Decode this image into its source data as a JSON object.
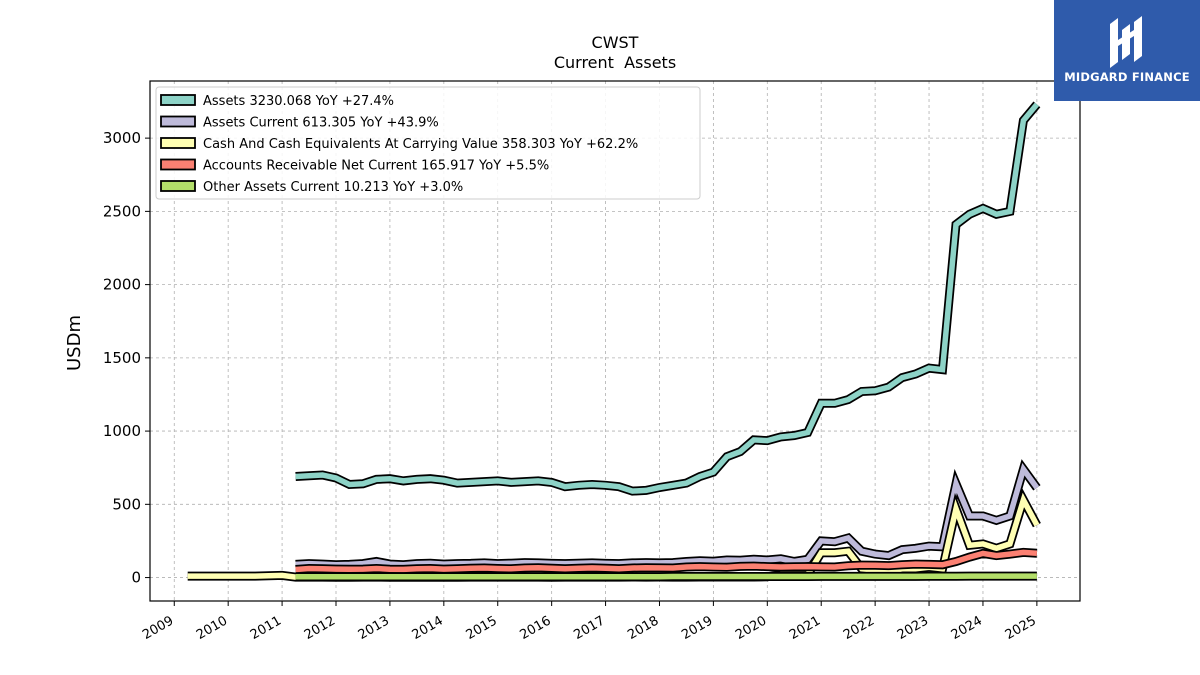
{
  "header": {
    "ticker": "CWST",
    "subtitle": "Current  Assets"
  },
  "logo": {
    "text": "MIDGARD FINANCE",
    "color": "#2f5bab"
  },
  "colors": {
    "assets": "#8dd3c7",
    "assets_current": "#bebada",
    "cash": "#ffffb3",
    "receivables": "#fb8072",
    "other": "#b3de69"
  },
  "chart_data": {
    "type": "line",
    "title": "CWST",
    "subtitle": "Current  Assets",
    "ylabel": "USDm",
    "xlabel": "",
    "ylim": [
      -160,
      3390
    ],
    "xlim": [
      2008.55,
      2025.8
    ],
    "y_ticks": [
      0,
      500,
      1000,
      1500,
      2000,
      2500,
      3000
    ],
    "x_ticks": [
      "2009",
      "2010",
      "2011",
      "2012",
      "2013",
      "2014",
      "2015",
      "2016",
      "2017",
      "2018",
      "2019",
      "2020",
      "2021",
      "2022",
      "2023",
      "2024",
      "2025"
    ],
    "grid": true,
    "legend_position": "top-left",
    "series": [
      {
        "name": "Assets  3230.068 YoY +27.4%",
        "color_key": "assets",
        "x": [
          2011.25,
          2011.5,
          2011.75,
          2012.0,
          2012.25,
          2012.5,
          2012.75,
          2013.0,
          2013.25,
          2013.5,
          2013.75,
          2014.0,
          2014.25,
          2014.5,
          2014.75,
          2015.0,
          2015.25,
          2015.5,
          2015.75,
          2016.0,
          2016.25,
          2016.5,
          2016.75,
          2017.0,
          2017.25,
          2017.5,
          2017.75,
          2018.0,
          2018.25,
          2018.5,
          2018.75,
          2019.0,
          2019.25,
          2019.5,
          2019.75,
          2020.0,
          2020.25,
          2020.5,
          2020.75,
          2021.0,
          2021.25,
          2021.5,
          2021.75,
          2022.0,
          2022.25,
          2022.5,
          2022.75,
          2023.0,
          2023.25,
          2023.5,
          2023.75,
          2024.0,
          2024.25,
          2024.5,
          2024.75,
          2025.0
        ],
        "y": [
          690,
          695,
          700,
          680,
          635,
          640,
          670,
          675,
          660,
          670,
          675,
          665,
          645,
          650,
          655,
          660,
          650,
          655,
          660,
          650,
          620,
          630,
          635,
          630,
          620,
          590,
          595,
          615,
          630,
          645,
          690,
          720,
          825,
          860,
          940,
          935,
          960,
          970,
          990,
          1190,
          1190,
          1215,
          1270,
          1275,
          1300,
          1365,
          1390,
          1430,
          1420,
          2410,
          2480,
          2520,
          2480,
          2500,
          3120,
          3230
        ]
      },
      {
        "name": "Assets Current  613.305 YoY +43.9%",
        "color_key": "assets_current",
        "x": [
          2011.25,
          2011.5,
          2011.75,
          2012.0,
          2012.25,
          2012.5,
          2012.75,
          2013.0,
          2013.25,
          2013.5,
          2013.75,
          2014.0,
          2014.25,
          2014.5,
          2014.75,
          2015.0,
          2015.25,
          2015.5,
          2015.75,
          2016.0,
          2016.25,
          2016.5,
          2016.75,
          2017.0,
          2017.25,
          2017.5,
          2017.75,
          2018.0,
          2018.25,
          2018.5,
          2018.75,
          2019.0,
          2019.25,
          2019.5,
          2019.75,
          2020.0,
          2020.25,
          2020.5,
          2020.75,
          2021.0,
          2021.25,
          2021.5,
          2021.75,
          2022.0,
          2022.25,
          2022.5,
          2022.75,
          2023.0,
          2023.25,
          2023.5,
          2023.75,
          2024.0,
          2024.25,
          2024.5,
          2024.75,
          2025.0
        ],
        "y": [
          90,
          95,
          92,
          88,
          90,
          95,
          110,
          92,
          88,
          95,
          98,
          92,
          95,
          97,
          100,
          95,
          98,
          102,
          100,
          97,
          95,
          98,
          100,
          97,
          95,
          100,
          102,
          100,
          102,
          110,
          115,
          112,
          120,
          118,
          125,
          120,
          128,
          110,
          125,
          250,
          245,
          270,
          180,
          160,
          150,
          190,
          200,
          215,
          210,
          640,
          420,
          420,
          390,
          420,
          740,
          613
        ]
      },
      {
        "name": "Cash And Cash Equivalents At Carrying Value  358.303 YoY +62.2%",
        "color_key": "cash",
        "x": [
          2009.25,
          2009.5,
          2009.75,
          2010.0,
          2010.25,
          2010.5,
          2010.75,
          2011.0,
          2011.25,
          2011.5,
          2011.75,
          2012.0,
          2012.25,
          2012.5,
          2012.75,
          2013.0,
          2013.25,
          2013.5,
          2013.75,
          2014.0,
          2014.25,
          2014.5,
          2014.75,
          2015.0,
          2015.25,
          2015.5,
          2015.75,
          2016.0,
          2016.25,
          2016.5,
          2016.75,
          2017.0,
          2017.25,
          2017.5,
          2017.75,
          2018.0,
          2018.25,
          2018.5,
          2018.75,
          2019.0,
          2019.25,
          2019.5,
          2019.75,
          2020.0,
          2020.25,
          2020.5,
          2020.75,
          2021.0,
          2021.25,
          2021.5,
          2021.75,
          2022.0,
          2022.25,
          2022.5,
          2022.75,
          2023.0,
          2023.25,
          2023.5,
          2023.75,
          2024.0,
          2024.25,
          2024.5,
          2024.75,
          2025.0
        ],
        "y": [
          10,
          10,
          10,
          10,
          10,
          10,
          12,
          15,
          3,
          3,
          3,
          2,
          2,
          3,
          3,
          2,
          2,
          2,
          3,
          2,
          2,
          3,
          3,
          3,
          3,
          3,
          3,
          2,
          3,
          3,
          3,
          3,
          3,
          4,
          3,
          4,
          3,
          3,
          4,
          4,
          4,
          4,
          4,
          5,
          20,
          20,
          20,
          170,
          170,
          180,
          60,
          50,
          40,
          60,
          60,
          70,
          60,
          470,
          220,
          230,
          200,
          230,
          530,
          358
        ]
      },
      {
        "name": "Accounts Receivable Net Current  165.917 YoY +5.5%",
        "color_key": "receivables",
        "x": [
          2011.25,
          2011.5,
          2011.75,
          2012.0,
          2012.25,
          2012.5,
          2012.75,
          2013.0,
          2013.25,
          2013.5,
          2013.75,
          2014.0,
          2014.25,
          2014.5,
          2014.75,
          2015.0,
          2015.25,
          2015.5,
          2015.75,
          2016.0,
          2016.25,
          2016.5,
          2016.75,
          2017.0,
          2017.25,
          2017.5,
          2017.75,
          2018.0,
          2018.25,
          2018.5,
          2018.75,
          2019.0,
          2019.25,
          2019.5,
          2019.75,
          2020.0,
          2020.25,
          2020.5,
          2020.75,
          2021.0,
          2021.25,
          2021.5,
          2021.75,
          2022.0,
          2022.25,
          2022.5,
          2022.75,
          2023.0,
          2023.25,
          2023.5,
          2023.75,
          2024.0,
          2024.25,
          2024.5,
          2024.75,
          2025.0
        ],
        "y": [
          55,
          62,
          60,
          58,
          57,
          58,
          62,
          57,
          56,
          60,
          62,
          58,
          60,
          63,
          65,
          62,
          60,
          65,
          67,
          63,
          60,
          64,
          66,
          63,
          60,
          65,
          67,
          66,
          65,
          72,
          75,
          72,
          70,
          76,
          78,
          75,
          72,
          74,
          75,
          73,
          72,
          80,
          85,
          84,
          82,
          88,
          92,
          90,
          87,
          110,
          140,
          165,
          150,
          160,
          172,
          166
        ]
      },
      {
        "name": "Other Assets Current  10.213 YoY +3.0%",
        "color_key": "other",
        "x": [
          2011.25,
          2011.5,
          2011.75,
          2012.0,
          2012.25,
          2012.5,
          2012.75,
          2013.0,
          2013.25,
          2013.5,
          2013.75,
          2014.0,
          2014.25,
          2014.5,
          2014.75,
          2015.0,
          2015.25,
          2015.5,
          2015.75,
          2016.0,
          2016.25,
          2016.5,
          2016.75,
          2017.0,
          2017.25,
          2017.5,
          2017.75,
          2018.0,
          2018.25,
          2018.5,
          2018.75,
          2019.0,
          2019.25,
          2019.5,
          2019.75,
          2020.0,
          2020.25,
          2020.5,
          2020.75,
          2021.0,
          2021.25,
          2021.5,
          2021.75,
          2022.0,
          2022.25,
          2022.5,
          2022.75,
          2023.0,
          2023.25,
          2023.5,
          2023.75,
          2024.0,
          2024.25,
          2024.5,
          2024.75,
          2025.0
        ],
        "y": [
          5,
          5,
          5,
          5,
          5,
          5,
          5,
          5,
          5,
          5,
          5,
          5,
          5,
          5,
          6,
          6,
          6,
          6,
          6,
          6,
          6,
          6,
          6,
          6,
          6,
          6,
          6,
          6,
          7,
          7,
          7,
          7,
          7,
          7,
          7,
          7,
          7,
          7,
          7,
          8,
          8,
          8,
          8,
          8,
          8,
          8,
          8,
          9,
          9,
          9,
          10,
          10,
          10,
          10,
          10,
          10
        ]
      }
    ]
  }
}
